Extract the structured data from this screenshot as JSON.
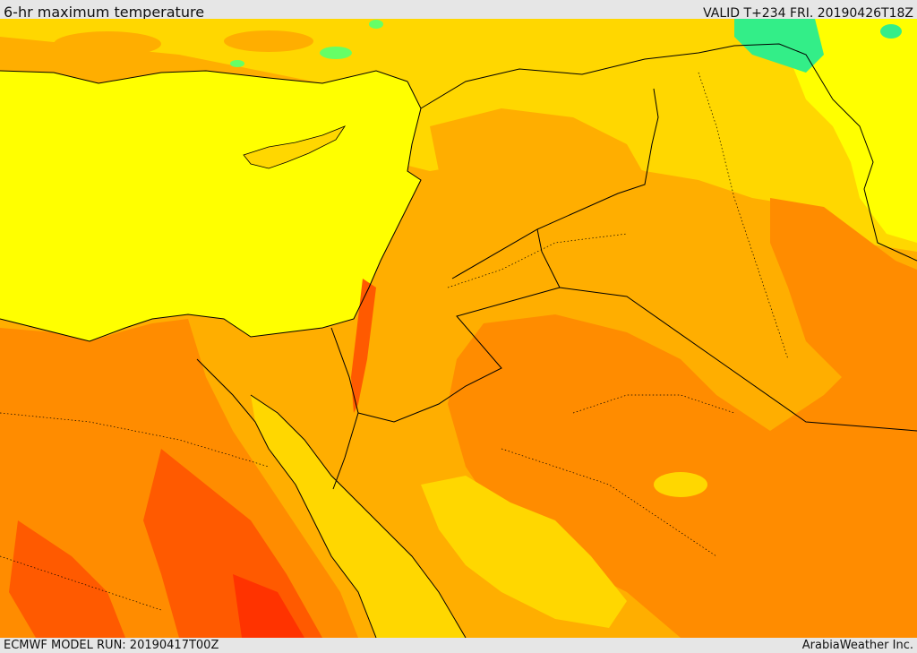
{
  "header": {
    "title": "6-hr maximum temperature",
    "valid": "VALID T+234 FRI. 20190426T18Z"
  },
  "footer": {
    "model_run": "ECMWF MODEL RUN: 20190417T00Z",
    "credit": "ArabiaWeather Inc."
  },
  "map": {
    "variable": "6-hr maximum temperature",
    "colors": {
      "sea": "#ffff00",
      "warm_yellow": "#ffd700",
      "orange": "#ffae00",
      "deep_orange": "#ff8c00",
      "red_orange": "#ff5a00",
      "red": "#ff3300",
      "light_green": "#aaff66",
      "green": "#33ee88",
      "border": "#000000"
    }
  }
}
